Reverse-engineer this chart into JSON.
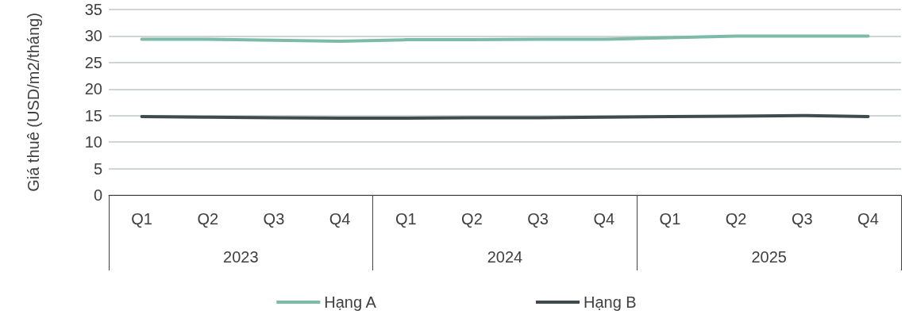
{
  "chart_data": {
    "type": "line",
    "ylabel": "Giá thuê (USD/m2/tháng)",
    "categories": [
      "Q1",
      "Q2",
      "Q3",
      "Q4",
      "Q1",
      "Q2",
      "Q3",
      "Q4",
      "Q1",
      "Q2",
      "Q3",
      "Q4"
    ],
    "annotations": [
      "2023",
      "2024",
      "2025"
    ],
    "series": [
      {
        "name": "Hạng A",
        "color": "#7dbaa8",
        "values": [
          29.4,
          29.4,
          29.2,
          29.0,
          29.3,
          29.3,
          29.4,
          29.4,
          29.7,
          30.0,
          30.0,
          30.0
        ]
      },
      {
        "name": "Hạng B",
        "color": "#3f4c4e",
        "values": [
          14.8,
          14.7,
          14.6,
          14.5,
          14.5,
          14.6,
          14.6,
          14.7,
          14.8,
          14.9,
          15.0,
          14.8
        ]
      }
    ],
    "ylim": [
      0,
      35
    ],
    "yticks": [
      0,
      5,
      10,
      15,
      20,
      25,
      30,
      35
    ],
    "grid": "y",
    "legend": "bottom",
    "marker": "none",
    "line_style": "solid"
  }
}
